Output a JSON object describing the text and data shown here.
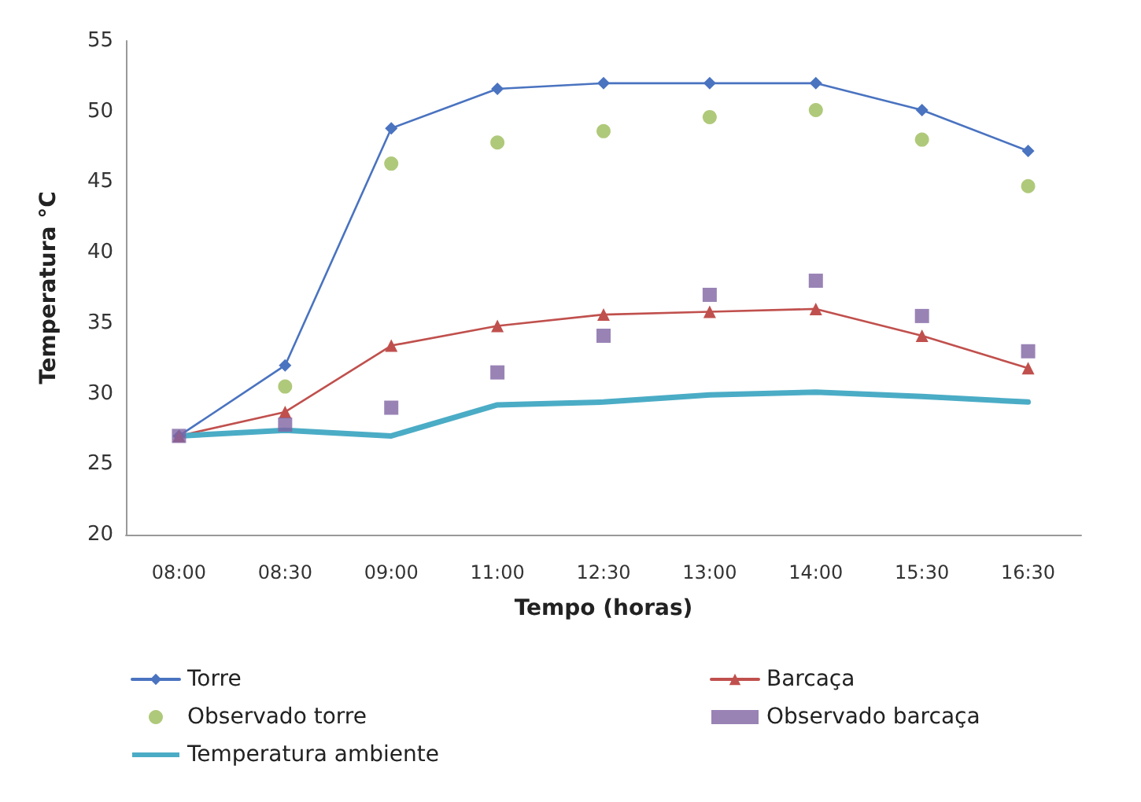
{
  "chart_data": {
    "type": "line",
    "xlabel": "Tempo (horas)",
    "ylabel": "Temperatura °C",
    "categories": [
      "08:00",
      "08:30",
      "09:00",
      "11:00",
      "12:30",
      "13:00",
      "14:00",
      "15:30",
      "16:30"
    ],
    "series": [
      {
        "name": "Torre",
        "color": "#4a73c0",
        "marker": "diamond",
        "values": [
          27,
          32,
          48.8,
          51.6,
          52,
          52,
          52,
          50.1,
          47.2
        ]
      },
      {
        "name": "Barcaça",
        "color": "#c0504d",
        "marker": "triangle",
        "values": [
          27,
          28.7,
          33.4,
          34.8,
          35.6,
          35.8,
          36,
          34.1,
          31.8
        ]
      },
      {
        "name": "Observado torre",
        "type": "scatter",
        "color": "#9bbb59",
        "marker": "circle",
        "values": [
          null,
          30.5,
          46.3,
          47.8,
          48.6,
          49.6,
          50.1,
          48,
          44.7
        ]
      },
      {
        "name": "Observado barcaça",
        "type": "scatter",
        "color": "#8064a2",
        "marker": "square",
        "values": [
          27,
          27.8,
          29,
          31.5,
          34.1,
          37,
          38,
          35.5,
          33
        ]
      },
      {
        "name": "Temperatura ambiente",
        "color": "#4bacc6",
        "marker": "none",
        "values": [
          27,
          27.4,
          27,
          29.2,
          29.4,
          29.9,
          30.1,
          29.8,
          29.4
        ]
      }
    ],
    "ylim": [
      20,
      55
    ],
    "yticks": [
      20,
      25,
      30,
      35,
      40,
      45,
      50,
      55
    ],
    "grid": false,
    "legend": "bottom"
  }
}
